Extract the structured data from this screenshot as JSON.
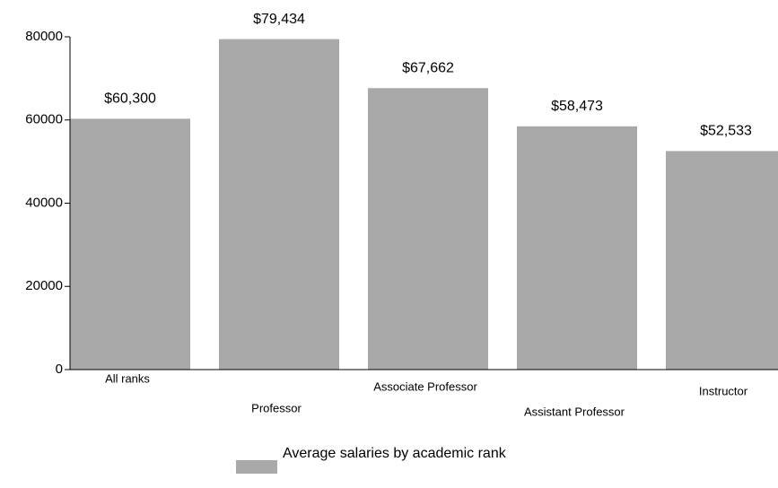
{
  "chart_data": {
    "type": "bar",
    "categories": [
      "All ranks",
      "Professor",
      "Associate Professor",
      "Assistant Professor",
      "Instructor"
    ],
    "series": [
      {
        "name": "Average salaries by academic rank",
        "color": "#a9a9a9",
        "values": [
          60300,
          79434,
          67662,
          58473,
          52533
        ],
        "value_labels": [
          "$60,300",
          "$79,434",
          "$67,662",
          "$58,473",
          "$52,533"
        ]
      }
    ],
    "ylim": [
      0,
      80000
    ],
    "yticks": [
      0,
      20000,
      40000,
      60000,
      80000
    ]
  }
}
